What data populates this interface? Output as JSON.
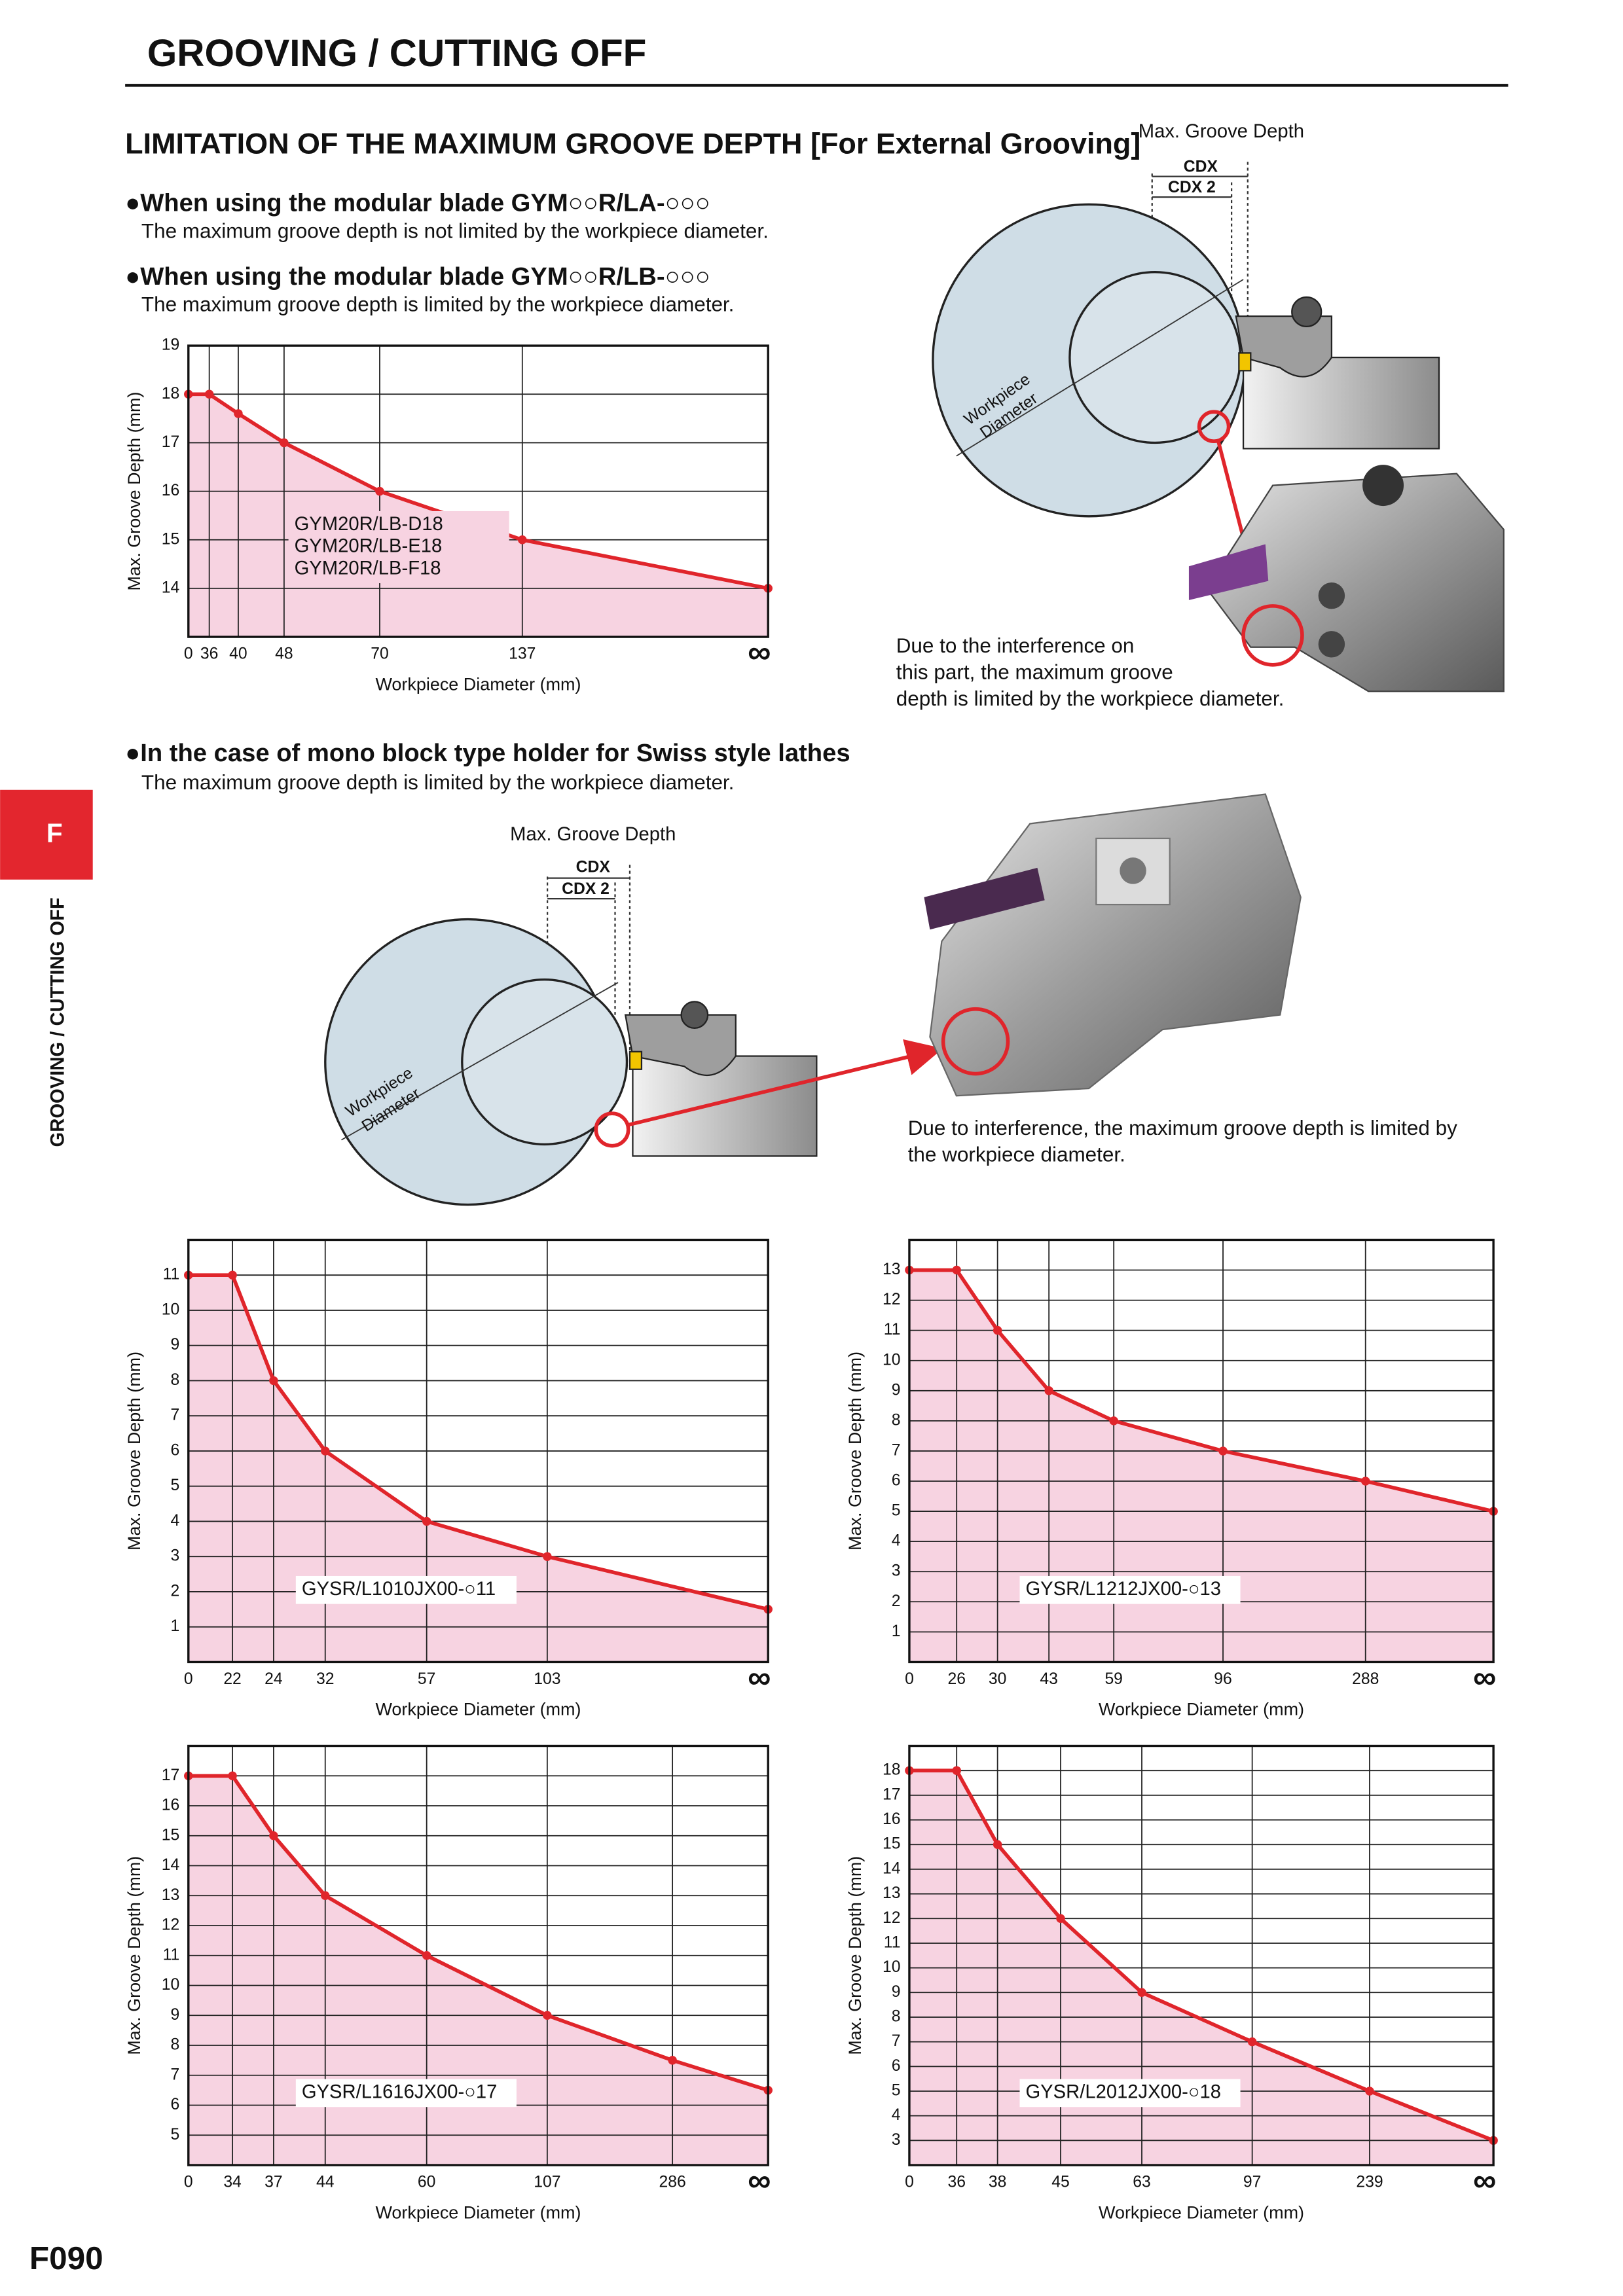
{
  "header": {
    "title": "GROOVING / CUTTING OFF"
  },
  "section_title": "LIMITATION OF THE MAXIMUM GROOVE DEPTH [For External Grooving]",
  "bullets": [
    {
      "title": "●When using the modular blade GYM○○R/LA-○○○",
      "note": "The maximum groove depth is not limited by the workpiece diameter."
    },
    {
      "title": "●When using the modular blade GYM○○R/LB-○○○",
      "note": "The maximum groove depth is limited by the workpiece diameter."
    },
    {
      "title": "●In the case of mono block type holder for Swiss style lathes",
      "note": "The maximum groove depth is limited by the workpiece diameter."
    }
  ],
  "diagrams": [
    {
      "depth_label": "Max. Groove Depth",
      "cdx": "CDX",
      "cdx2": "CDX 2",
      "workpiece": [
        "Workpiece",
        "Diameter"
      ],
      "note": [
        "Due to the interference on",
        "this part, the maximum groove",
        "depth is limited by the workpiece diameter."
      ]
    },
    {
      "depth_label": "Max. Groove Depth",
      "cdx": "CDX",
      "cdx2": "CDX 2",
      "workpiece": [
        "Workpiece",
        "Diameter"
      ],
      "note": [
        "Due to interference, the maximum groove depth is limited by",
        "the workpiece diameter."
      ]
    }
  ],
  "side_tab": {
    "letter": "F",
    "text": "GROOVING / CUTTING OFF"
  },
  "page_number": "F090",
  "chart_data": [
    {
      "type": "area",
      "y_label": "Max. Groove Depth (mm)",
      "x_label": "Workpiece Diameter (mm)",
      "categories": [
        "0",
        "36",
        "40",
        "48",
        "70",
        "137",
        "∞"
      ],
      "values": [
        18,
        18,
        17.6,
        17,
        16,
        15,
        14
      ],
      "labels": [
        "GYM20R/LB-D18",
        "GYM20R/LB-E18",
        "GYM20R/LB-F18"
      ],
      "color": "#e0252b",
      "fill": "#f7d3e1",
      "ylim": [
        13,
        19
      ],
      "yticks": [
        14,
        15,
        16,
        17,
        18,
        19
      ],
      "grid": true
    },
    {
      "type": "area",
      "y_label": "Max. Groove Depth (mm)",
      "x_label": "Workpiece Diameter (mm)",
      "categories": [
        "0",
        "22",
        "24",
        "32",
        "57",
        "103",
        "∞"
      ],
      "values": [
        11,
        11,
        8,
        6,
        4,
        3,
        1.5
      ],
      "labels": [
        "GYSR/L1010JX00-○11"
      ],
      "color": "#e0252b",
      "fill": "#f7d3e1",
      "ylim": [
        0,
        12
      ],
      "yticks": [
        1,
        2,
        3,
        4,
        5,
        6,
        7,
        8,
        9,
        10,
        11
      ],
      "grid": true
    },
    {
      "type": "area",
      "y_label": "Max. Groove Depth (mm)",
      "x_label": "Workpiece Diameter (mm)",
      "categories": [
        "0",
        "26",
        "30",
        "43",
        "59",
        "96",
        "288",
        "∞"
      ],
      "values": [
        13,
        13,
        11,
        9,
        8,
        7,
        6,
        5
      ],
      "labels": [
        "GYSR/L1212JX00-○13"
      ],
      "color": "#e0252b",
      "fill": "#f7d3e1",
      "ylim": [
        0,
        14
      ],
      "yticks": [
        1,
        2,
        3,
        4,
        5,
        6,
        7,
        8,
        9,
        10,
        11,
        12,
        13
      ],
      "grid": true
    },
    {
      "type": "area",
      "y_label": "Max. Groove Depth (mm)",
      "x_label": "Workpiece Diameter (mm)",
      "categories": [
        "0",
        "34",
        "37",
        "44",
        "60",
        "107",
        "286",
        "∞"
      ],
      "values": [
        17,
        17,
        15,
        13,
        11,
        9,
        7.5,
        6.5
      ],
      "labels": [
        "GYSR/L1616JX00-○17"
      ],
      "color": "#e0252b",
      "fill": "#f7d3e1",
      "ylim": [
        4,
        18
      ],
      "yticks": [
        5,
        6,
        7,
        8,
        9,
        10,
        11,
        12,
        13,
        14,
        15,
        16,
        17
      ],
      "grid": true
    },
    {
      "type": "area",
      "y_label": "Max. Groove Depth (mm)",
      "x_label": "Workpiece Diameter (mm)",
      "categories": [
        "0",
        "36",
        "38",
        "45",
        "63",
        "97",
        "239",
        "∞"
      ],
      "values": [
        18,
        18,
        15,
        12,
        9,
        7,
        5,
        3
      ],
      "labels": [
        "GYSR/L2012JX00-○18"
      ],
      "color": "#e0252b",
      "fill": "#f7d3e1",
      "ylim": [
        2,
        19
      ],
      "yticks": [
        3,
        4,
        5,
        6,
        7,
        8,
        9,
        10,
        11,
        12,
        13,
        14,
        15,
        16,
        17,
        18
      ],
      "grid": true
    }
  ]
}
